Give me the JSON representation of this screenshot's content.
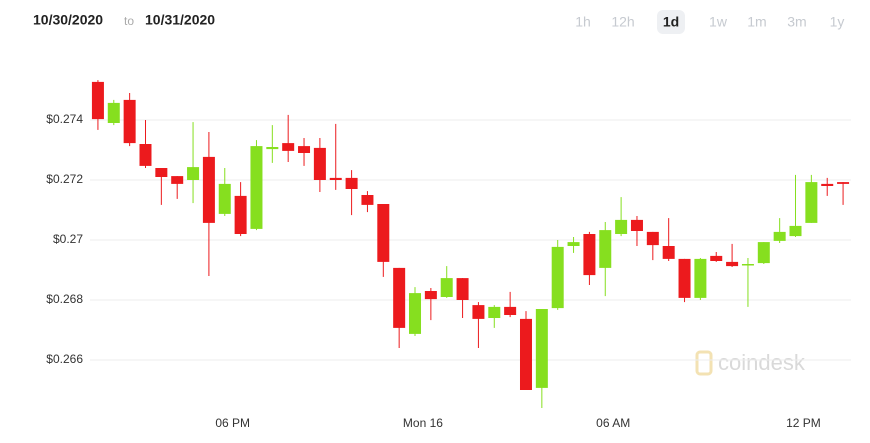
{
  "header": {
    "date_from": "10/30/2020",
    "separator": "to",
    "date_to": "10/31/2020",
    "ranges": [
      "1h",
      "12h",
      "1d",
      "1w",
      "1m",
      "3m",
      "1y"
    ],
    "active_range": 2
  },
  "watermark": "coindesk",
  "chart_data": {
    "type": "candlestick",
    "x": [
      0,
      1,
      2,
      3,
      4,
      5,
      6,
      7,
      8,
      9,
      10,
      11,
      12,
      13,
      14,
      15,
      16,
      17,
      18,
      19,
      20,
      21,
      22,
      23,
      24,
      25,
      26,
      27,
      28,
      29,
      30,
      31,
      32,
      33,
      34,
      35,
      36,
      37,
      38,
      39,
      40,
      41,
      42,
      43,
      44,
      45,
      46,
      47
    ],
    "open": [
      0.27527,
      0.2739,
      0.27467,
      0.2732,
      0.2724,
      0.27213,
      0.272,
      0.27277,
      0.27087,
      0.27147,
      0.27037,
      0.27303,
      0.27323,
      0.27313,
      0.27307,
      0.27207,
      0.27207,
      0.2715,
      0.2712,
      0.26907,
      0.26687,
      0.2683,
      0.2681,
      0.26873,
      0.26783,
      0.2674,
      0.26777,
      0.26737,
      0.26507,
      0.26773,
      0.2698,
      0.2702,
      0.26907,
      0.2702,
      0.27067,
      0.27027,
      0.2698,
      0.26937,
      0.26807,
      0.26947,
      0.26927,
      0.26917,
      0.26923,
      0.26997,
      0.27013,
      0.27057,
      0.27187,
      0.27193
    ],
    "high": [
      0.27533,
      0.27467,
      0.2749,
      0.274,
      0.2724,
      0.27213,
      0.27393,
      0.2736,
      0.2724,
      0.27193,
      0.27333,
      0.27383,
      0.27417,
      0.2734,
      0.2734,
      0.27387,
      0.27233,
      0.27163,
      0.2712,
      0.26907,
      0.26843,
      0.2684,
      0.26913,
      0.26873,
      0.26793,
      0.26783,
      0.26827,
      0.26763,
      0.2677,
      0.27,
      0.2701,
      0.27027,
      0.2706,
      0.27143,
      0.2708,
      0.27027,
      0.27073,
      0.26937,
      0.2694,
      0.2696,
      0.26987,
      0.2694,
      0.26993,
      0.27073,
      0.27217,
      0.27217,
      0.27207,
      0.27193
    ],
    "low": [
      0.27367,
      0.27383,
      0.27313,
      0.2724,
      0.27117,
      0.27137,
      0.27123,
      0.2688,
      0.2708,
      0.27013,
      0.27033,
      0.27257,
      0.2726,
      0.27247,
      0.2716,
      0.27167,
      0.27083,
      0.27093,
      0.26877,
      0.2664,
      0.2668,
      0.26733,
      0.26807,
      0.2674,
      0.2664,
      0.26707,
      0.26743,
      0.265,
      0.2644,
      0.26767,
      0.26957,
      0.2685,
      0.26813,
      0.27013,
      0.2698,
      0.26933,
      0.2693,
      0.26793,
      0.268,
      0.26927,
      0.2691,
      0.26777,
      0.2692,
      0.2699,
      0.2701,
      0.27057,
      0.27147,
      0.27117
    ],
    "close": [
      0.27403,
      0.27457,
      0.27323,
      0.27247,
      0.2721,
      0.27187,
      0.27243,
      0.27057,
      0.27187,
      0.2702,
      0.27313,
      0.2731,
      0.27297,
      0.2729,
      0.272,
      0.272,
      0.2717,
      0.27117,
      0.26927,
      0.26707,
      0.26823,
      0.26803,
      0.26873,
      0.268,
      0.26737,
      0.26777,
      0.2675,
      0.265,
      0.2677,
      0.26977,
      0.26993,
      0.26883,
      0.27033,
      0.27067,
      0.2703,
      0.26983,
      0.26937,
      0.26807,
      0.26937,
      0.2693,
      0.26913,
      0.2692,
      0.26993,
      0.27027,
      0.27047,
      0.27193,
      0.2718,
      0.27187
    ],
    "up_color": "#86df1f",
    "down_color": "#ec1a1d",
    "xlim": [
      -0.5,
      47.5
    ],
    "xticks": [
      {
        "value": 8.5,
        "label": "06 PM"
      },
      {
        "value": 20.5,
        "label": "Mon 16"
      },
      {
        "value": 32.5,
        "label": "06 AM"
      },
      {
        "value": 44.5,
        "label": "12 PM"
      }
    ],
    "ylim": [
      0.2642,
      0.2758
    ],
    "yticks": [
      {
        "value": 0.266,
        "label": "$0.266"
      },
      {
        "value": 0.268,
        "label": "$0.268"
      },
      {
        "value": 0.27,
        "label": "$0.27"
      },
      {
        "value": 0.272,
        "label": "$0.272"
      },
      {
        "value": 0.274,
        "label": "$0.274"
      }
    ],
    "grid": true
  }
}
